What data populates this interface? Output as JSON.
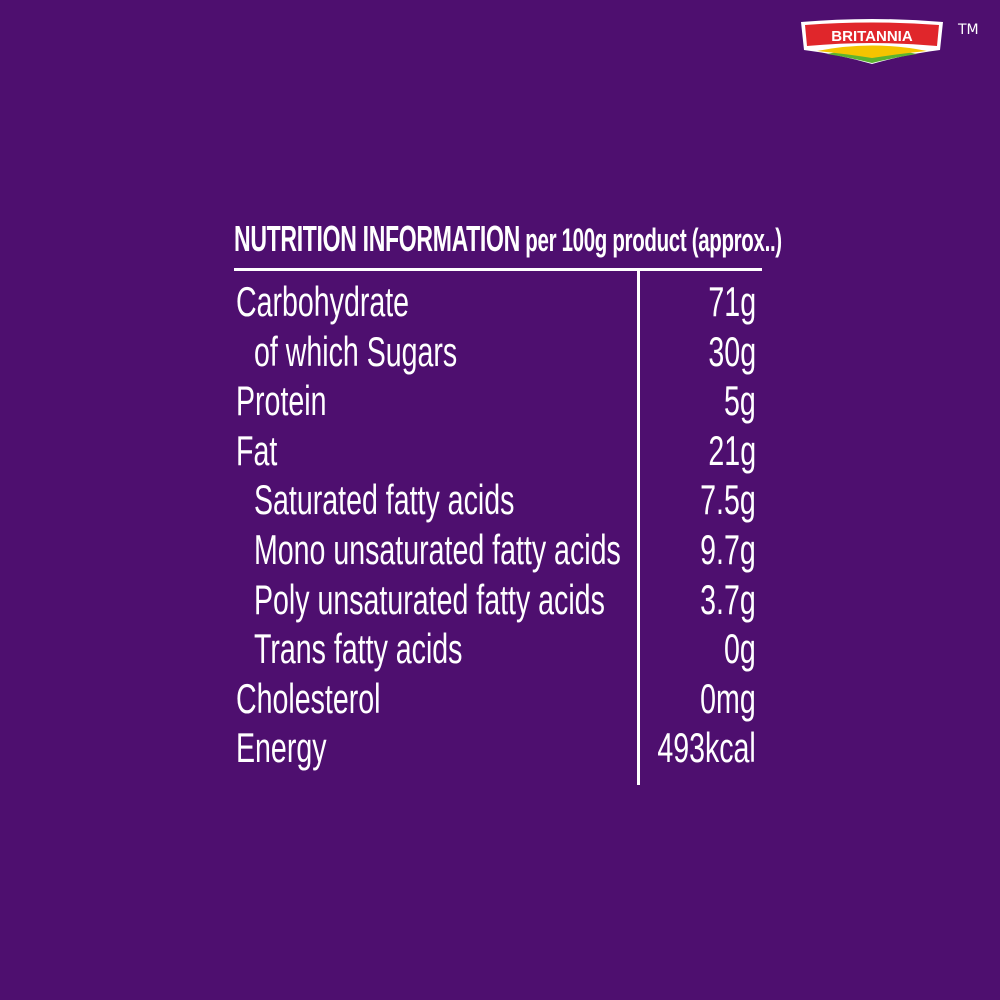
{
  "brand": {
    "logo_text": "BRITANNIA",
    "trademark": "TM",
    "colors": {
      "red": "#e0262b",
      "yellow": "#f5c400",
      "green": "#5bb330"
    }
  },
  "background_color": "#4e0f6f",
  "nutrition": {
    "title_bold": "NUTRITION INFORMATION",
    "title_rest": " per 100g product (approx..)",
    "rows": [
      {
        "label": "Carbohydrate",
        "value": "71g",
        "indent": false
      },
      {
        "label": "of which Sugars",
        "value": "30g",
        "indent": true
      },
      {
        "label": "Protein",
        "value": "5g",
        "indent": false
      },
      {
        "label": "Fat",
        "value": "21g",
        "indent": false
      },
      {
        "label": "Saturated fatty acids",
        "value": "7.5g",
        "indent": true
      },
      {
        "label": "Mono unsaturated fatty acids",
        "value": "9.7g",
        "indent": true
      },
      {
        "label": "Poly unsaturated fatty acids",
        "value": "3.7g",
        "indent": true
      },
      {
        "label": "Trans fatty acids",
        "value": "0g",
        "indent": true
      },
      {
        "label": "Cholesterol",
        "value": "0mg",
        "indent": false
      },
      {
        "label": "Energy",
        "value": "493kcal",
        "indent": false
      }
    ]
  }
}
